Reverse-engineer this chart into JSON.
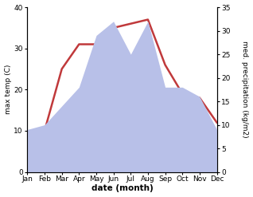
{
  "months": [
    "Jan",
    "Feb",
    "Mar",
    "Apr",
    "May",
    "Jun",
    "Jul",
    "Aug",
    "Sep",
    "Oct",
    "Nov",
    "Dec"
  ],
  "temp": [
    8,
    10,
    25,
    31,
    31,
    35,
    36,
    37,
    26,
    19,
    18,
    12
  ],
  "precip": [
    9,
    10,
    14,
    18,
    29,
    32,
    25,
    32,
    18,
    18,
    16,
    9
  ],
  "temp_color": "#c0393b",
  "precip_color": "#b8c0e8",
  "left_ylim": [
    0,
    40
  ],
  "right_ylim": [
    0,
    35
  ],
  "left_yticks": [
    0,
    10,
    20,
    30,
    40
  ],
  "right_yticks": [
    0,
    5,
    10,
    15,
    20,
    25,
    30,
    35
  ],
  "left_ylabel": "max temp (C)",
  "right_ylabel": "med. precipitation (kg/m2)",
  "xlabel": "date (month)",
  "temp_linewidth": 1.8,
  "bg_color": "#ffffff"
}
